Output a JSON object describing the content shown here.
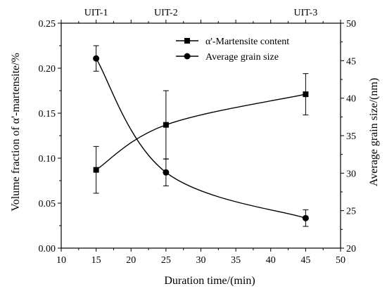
{
  "chart_data": {
    "type": "line",
    "xlabel": "Duration time/(min)",
    "ylabel_left": "Volume fraction of α'-martensite/%",
    "ylabel_right": "Average grain size/(nm)",
    "xlim": [
      10,
      50
    ],
    "xticks": [
      10,
      15,
      20,
      25,
      30,
      35,
      40,
      45,
      50
    ],
    "ylim_left": [
      0.0,
      0.25
    ],
    "yticks_left": [
      "0.00",
      "0.05",
      "0.10",
      "0.15",
      "0.20",
      "0.25"
    ],
    "ylim_right": [
      20,
      50
    ],
    "yticks_right": [
      20,
      25,
      30,
      35,
      40,
      45,
      50
    ],
    "top_labels": [
      {
        "x": 15,
        "text": "UIT-1"
      },
      {
        "x": 25,
        "text": "UIT-2"
      },
      {
        "x": 45,
        "text": "UIT-3"
      }
    ],
    "legend_position": "top-right",
    "grid": false,
    "series": [
      {
        "name": "α'-Martensite content",
        "axis": "left",
        "marker": "square",
        "x": [
          15,
          25,
          45
        ],
        "y": [
          0.087,
          0.137,
          0.171
        ],
        "err": [
          0.026,
          0.038,
          0.023
        ]
      },
      {
        "name": "Average grain size",
        "axis": "right",
        "marker": "circle",
        "x": [
          15,
          25,
          45
        ],
        "y": [
          45.3,
          30.1,
          24.0
        ],
        "err": [
          1.7,
          1.8,
          1.1
        ]
      }
    ]
  }
}
